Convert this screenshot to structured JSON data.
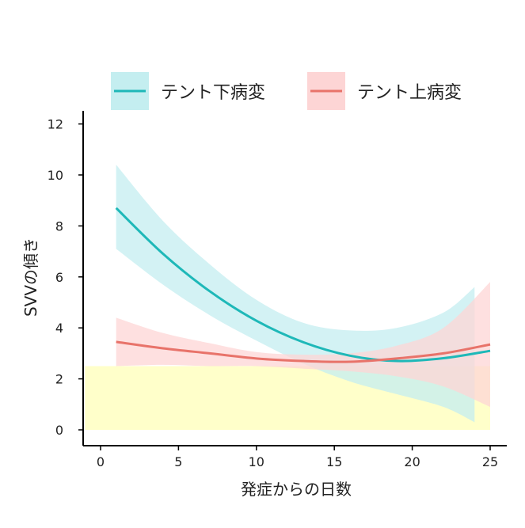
{
  "chart_data": {
    "type": "line",
    "xlabel": "発症からの日数",
    "ylabel": "SVVの傾き",
    "xlim": [
      -1,
      26
    ],
    "ylim": [
      -0.5,
      12.5
    ],
    "xticks": [
      0,
      5,
      10,
      15,
      20,
      25
    ],
    "yticks": [
      0,
      2,
      4,
      6,
      8,
      10,
      12
    ],
    "grid": false,
    "legend_position": "top",
    "highlight_band": {
      "x": [
        -1,
        25
      ],
      "y": [
        0,
        2.5
      ],
      "color": "#ffffc4"
    },
    "series": [
      {
        "name": "テント下病変",
        "color": "#1eb8b8",
        "ribbon_color": "#c4eef0",
        "x": [
          1,
          4,
          7,
          10,
          13,
          16,
          19,
          22,
          25
        ],
        "y": [
          8.7,
          6.91,
          5.44,
          4.28,
          3.44,
          2.91,
          2.7,
          2.81,
          3.1
        ],
        "ribbon_x": [
          1,
          4,
          7,
          10,
          13,
          16,
          19,
          22,
          24
        ],
        "upper": [
          10.4,
          8.2,
          6.5,
          5.1,
          4.2,
          3.9,
          4.0,
          4.6,
          5.6
        ],
        "lower": [
          7.1,
          5.7,
          4.5,
          3.5,
          2.6,
          1.9,
          1.4,
          0.9,
          0.3
        ]
      },
      {
        "name": "テント上病変",
        "color": "#e8736a",
        "ribbon_color": "#fdd5d5",
        "x": [
          1,
          4,
          7,
          10,
          13,
          16,
          19,
          22,
          25
        ],
        "y": [
          3.45,
          3.2,
          3.0,
          2.8,
          2.7,
          2.67,
          2.8,
          3.0,
          3.35
        ],
        "ribbon_x": [
          1,
          4,
          7,
          10,
          13,
          16,
          19,
          22,
          25
        ],
        "upper": [
          4.4,
          3.8,
          3.4,
          3.05,
          2.95,
          3.0,
          3.3,
          4.0,
          5.8
        ],
        "lower": [
          2.5,
          2.55,
          2.5,
          2.5,
          2.4,
          2.3,
          2.1,
          1.7,
          0.9
        ]
      }
    ]
  }
}
